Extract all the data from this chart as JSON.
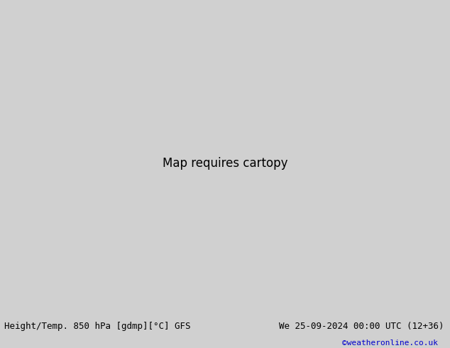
{
  "title_left": "Height/Temp. 850 hPa [gdmp][°C] GFS",
  "title_right": "We 25-09-2024 00:00 UTC (12+36)",
  "credit": "©weatheronline.co.uk",
  "bg_color": "#d0d0d0",
  "sea_color": "#d0d0d0",
  "australia_fill": "#b8e8a0",
  "land_fill": "#c8e8b0",
  "bottom_text_color": "#000000",
  "credit_color": "#0000cc",
  "fig_width": 6.34,
  "fig_height": 4.9,
  "dpi": 100,
  "font_size_bottom": 9,
  "font_size_credit": 8,
  "map_extent": [
    90,
    180,
    -55,
    5
  ],
  "orange_color": "#ff8c00",
  "red_color": "#dd0000",
  "cyan_color": "#00ccaa",
  "blue_color": "#4499cc",
  "black_color": "#000000",
  "gray_color": "#555555"
}
